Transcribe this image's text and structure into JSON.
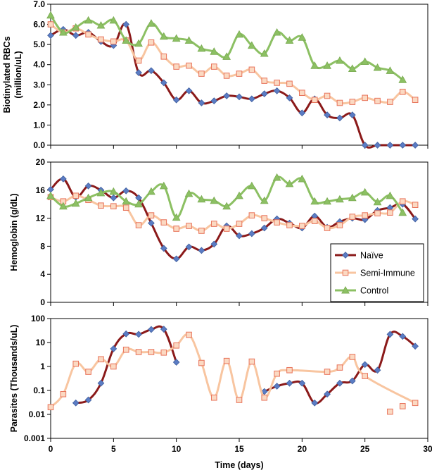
{
  "chart_data": [
    {
      "type": "line",
      "panel": "rbc",
      "ylabel_lines": [
        "Biotinylated RBCs",
        "(million/uL)"
      ],
      "ylim": [
        0,
        7
      ],
      "yticks": [
        0,
        1,
        2,
        3,
        4,
        5,
        6,
        7
      ],
      "ytick_labels": [
        "0.0",
        "1.0",
        "2.0",
        "3.0",
        "4.0",
        "5.0",
        "6.0",
        "7.0"
      ],
      "xlim": [
        0,
        30
      ],
      "series": [
        {
          "name": "Naïve",
          "color": "#8b1a1a",
          "marker": "diamond",
          "x": [
            0,
            1,
            2,
            3,
            4,
            5,
            6,
            7,
            8,
            9,
            10,
            11,
            12,
            13,
            14,
            15,
            16,
            17,
            18,
            19,
            20,
            21,
            22,
            23,
            24,
            25,
            26,
            27,
            28,
            29
          ],
          "y": [
            5.45,
            5.75,
            5.45,
            5.6,
            5.15,
            4.95,
            6.0,
            3.6,
            3.7,
            3.1,
            2.25,
            2.7,
            2.1,
            2.2,
            2.45,
            2.4,
            2.3,
            2.55,
            2.7,
            2.35,
            1.6,
            2.3,
            1.5,
            1.35,
            1.5,
            0.0,
            0.0,
            0.0,
            0.0,
            0.0
          ]
        },
        {
          "name": "Semi-Immune",
          "color": "#f8c5a0",
          "marker": "square",
          "x": [
            0,
            1,
            2,
            3,
            4,
            5,
            6,
            7,
            8,
            9,
            10,
            11,
            12,
            13,
            14,
            15,
            16,
            17,
            18,
            19,
            20,
            21,
            22,
            23,
            24,
            25,
            26,
            27,
            28,
            29
          ],
          "y": [
            6.0,
            5.6,
            5.8,
            5.5,
            5.25,
            5.15,
            5.2,
            4.2,
            5.1,
            4.4,
            3.9,
            3.95,
            3.55,
            3.9,
            3.45,
            3.55,
            3.75,
            3.2,
            3.1,
            3.05,
            2.6,
            2.25,
            2.45,
            2.1,
            2.15,
            2.35,
            2.2,
            2.15,
            2.65,
            2.25
          ]
        },
        {
          "name": "Control",
          "color": "#8cc063",
          "marker": "triangle",
          "x": [
            0,
            1,
            2,
            3,
            4,
            5,
            6,
            7,
            8,
            9,
            10,
            11,
            12,
            13,
            14,
            15,
            16,
            17,
            18,
            19,
            20,
            21,
            22,
            23,
            24,
            25,
            26,
            27,
            28
          ],
          "y": [
            6.45,
            5.6,
            5.85,
            6.2,
            5.95,
            6.2,
            5.2,
            5.05,
            6.05,
            5.4,
            5.3,
            5.2,
            4.8,
            4.65,
            4.4,
            5.5,
            4.95,
            4.55,
            5.6,
            5.2,
            5.35,
            3.95,
            3.95,
            4.2,
            3.8,
            4.15,
            3.85,
            3.7,
            3.25
          ]
        }
      ]
    },
    {
      "type": "line",
      "panel": "hemoglobin",
      "ylabel": "Hemoglobin (g/dL)",
      "ylim": [
        0,
        20
      ],
      "yticks": [
        0,
        4,
        8,
        12,
        16,
        20
      ],
      "ytick_labels": [
        "0",
        "4",
        "8",
        "12",
        "16",
        "20"
      ],
      "xlim": [
        0,
        30
      ],
      "legend": {
        "placement": "right",
        "entries": [
          "Naïve",
          "Semi-Immune",
          "Control"
        ]
      },
      "series": [
        {
          "name": "Naïve",
          "color": "#8b1a1a",
          "marker": "diamond",
          "x": [
            0,
            1,
            2,
            3,
            4,
            5,
            6,
            7,
            8,
            9,
            10,
            11,
            12,
            13,
            14,
            15,
            16,
            17,
            18,
            19,
            20,
            21,
            22,
            23,
            24,
            25,
            26,
            27,
            28,
            29
          ],
          "y": [
            16.1,
            17.6,
            15.0,
            16.6,
            16.0,
            14.9,
            15.9,
            14.9,
            11.3,
            7.7,
            6.2,
            7.9,
            7.4,
            8.3,
            10.9,
            9.5,
            9.8,
            10.6,
            11.9,
            11.3,
            10.6,
            12.3,
            10.7,
            11.5,
            12.0,
            11.8,
            13.1,
            13.5,
            14.0,
            11.9
          ]
        },
        {
          "name": "Semi-Immune",
          "color": "#f8c5a0",
          "marker": "square",
          "x": [
            0,
            1,
            2,
            3,
            4,
            5,
            6,
            7,
            8,
            9,
            10,
            11,
            12,
            13,
            14,
            15,
            16,
            17,
            18,
            19,
            20,
            21,
            22,
            23,
            24,
            25,
            26,
            27,
            28,
            29
          ],
          "y": [
            15.0,
            14.4,
            15.2,
            14.6,
            13.8,
            13.7,
            13.5,
            11.0,
            12.4,
            11.4,
            10.5,
            10.9,
            10.2,
            11.2,
            10.5,
            11.2,
            12.4,
            12.0,
            11.4,
            11.0,
            10.9,
            11.6,
            10.6,
            11.0,
            12.2,
            12.4,
            12.7,
            12.8,
            14.4,
            13.9
          ]
        },
        {
          "name": "Control",
          "color": "#8cc063",
          "marker": "triangle",
          "x": [
            0,
            1,
            2,
            3,
            4,
            5,
            6,
            7,
            8,
            9,
            10,
            11,
            12,
            13,
            14,
            15,
            16,
            17,
            18,
            19,
            20,
            21,
            22,
            23,
            24,
            25,
            26,
            27,
            28
          ],
          "y": [
            15.2,
            13.7,
            14.1,
            14.9,
            15.6,
            15.8,
            14.4,
            14.0,
            15.8,
            16.6,
            12.1,
            15.5,
            14.7,
            14.5,
            13.7,
            15.2,
            16.6,
            14.5,
            17.8,
            16.9,
            17.6,
            14.4,
            14.4,
            14.7,
            14.9,
            15.7,
            14.3,
            15.2,
            12.8
          ]
        }
      ]
    },
    {
      "type": "line",
      "panel": "parasites",
      "ylabel": "Parasites (Thousands/uL)",
      "yscale": "log",
      "ylim": [
        0.001,
        100
      ],
      "yticks": [
        0.001,
        0.01,
        0.1,
        1,
        10,
        100
      ],
      "ytick_labels": [
        "0.001",
        "0.01",
        "0.1",
        "1",
        "10",
        "100"
      ],
      "xlim": [
        0,
        30
      ],
      "xticks": [
        0,
        5,
        10,
        15,
        20,
        25,
        30
      ],
      "xtick_labels": [
        "0",
        "5",
        "10",
        "15",
        "20",
        "25",
        "30"
      ],
      "xlabel": "Time (days)",
      "series": [
        {
          "name": "Naïve",
          "color": "#8b1a1a",
          "marker": "diamond",
          "segments": [
            {
              "x": [
                2,
                3,
                4,
                5,
                6,
                7,
                8,
                9,
                10
              ],
              "y": [
                0.03,
                0.04,
                0.2,
                5.5,
                23,
                22,
                35,
                36,
                1.5
              ]
            },
            {
              "x": [
                17,
                18,
                19,
                20,
                21,
                22,
                23,
                24,
                25,
                26,
                27,
                28,
                29
              ],
              "y": [
                0.09,
                0.15,
                0.2,
                0.2,
                0.03,
                0.07,
                0.2,
                0.25,
                1.2,
                0.7,
                22,
                18,
                7
              ]
            }
          ]
        },
        {
          "name": "Semi-Immune",
          "color": "#f8c5a0",
          "marker": "square",
          "x": [
            0,
            1,
            2,
            3,
            4,
            5,
            6,
            7,
            8,
            9,
            10,
            11,
            12,
            13,
            14,
            15,
            16,
            17,
            18,
            19,
            22,
            23,
            24,
            25,
            29
          ],
          "y": [
            0.02,
            0.07,
            1.3,
            0.6,
            2.0,
            1.0,
            5.0,
            4.0,
            4.0,
            3.8,
            7.5,
            21,
            1.4,
            0.05,
            1.7,
            0.04,
            1.6,
            0.05,
            0.5,
            0.7,
            0.6,
            0.9,
            2.5,
            0.4,
            0.03
          ],
          "extra_points": {
            "x": [
              27,
              28
            ],
            "y": [
              0.013,
              0.022
            ]
          }
        }
      ]
    }
  ]
}
